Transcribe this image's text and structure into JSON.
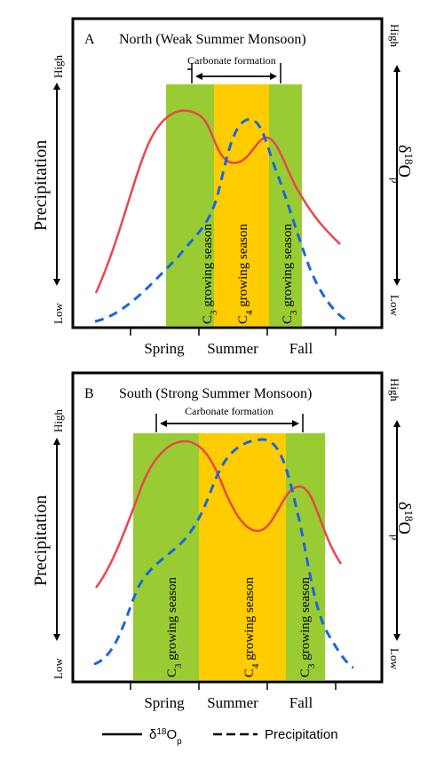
{
  "colors": {
    "green": "#99CC33",
    "orange": "#FFCC00",
    "red": "#E8474B",
    "blue": "#1A66E0",
    "frame": "#000000"
  },
  "panels": [
    {
      "letter": "A",
      "title": "North (Weak Summer Monsoon)",
      "carbonate_label": "Carbonate formation",
      "left_axis": {
        "label": "Precipitation",
        "high": "High",
        "low": "Low"
      },
      "right_axis": {
        "label": "δ18Op",
        "high": "High",
        "low": "Low"
      },
      "bands": [
        {
          "label": "C3 growing season",
          "color": "green"
        },
        {
          "label": "C4 growing season",
          "color": "orange"
        },
        {
          "label": "C3 growing season",
          "color": "green"
        }
      ],
      "x_ticks": [
        "Spring",
        "Summer",
        "Fall"
      ]
    },
    {
      "letter": "B",
      "title": "South (Strong Summer Monsoon)",
      "carbonate_label": "Carbonate formation",
      "left_axis": {
        "label": "Precipitation",
        "high": "High",
        "low": "Low"
      },
      "right_axis": {
        "label": "δ18Op",
        "high": "High",
        "low": "Low"
      },
      "bands": [
        {
          "label": "C3 growing season",
          "color": "green"
        },
        {
          "label": "C4 growing season",
          "color": "orange"
        },
        {
          "label": "C3 growing season",
          "color": "green"
        }
      ],
      "x_ticks": [
        "Spring",
        "Summer",
        "Fall"
      ]
    }
  ],
  "legend": [
    {
      "style": "solid",
      "label": "δ18Op"
    },
    {
      "style": "dashed",
      "label": "Precipitation"
    }
  ]
}
